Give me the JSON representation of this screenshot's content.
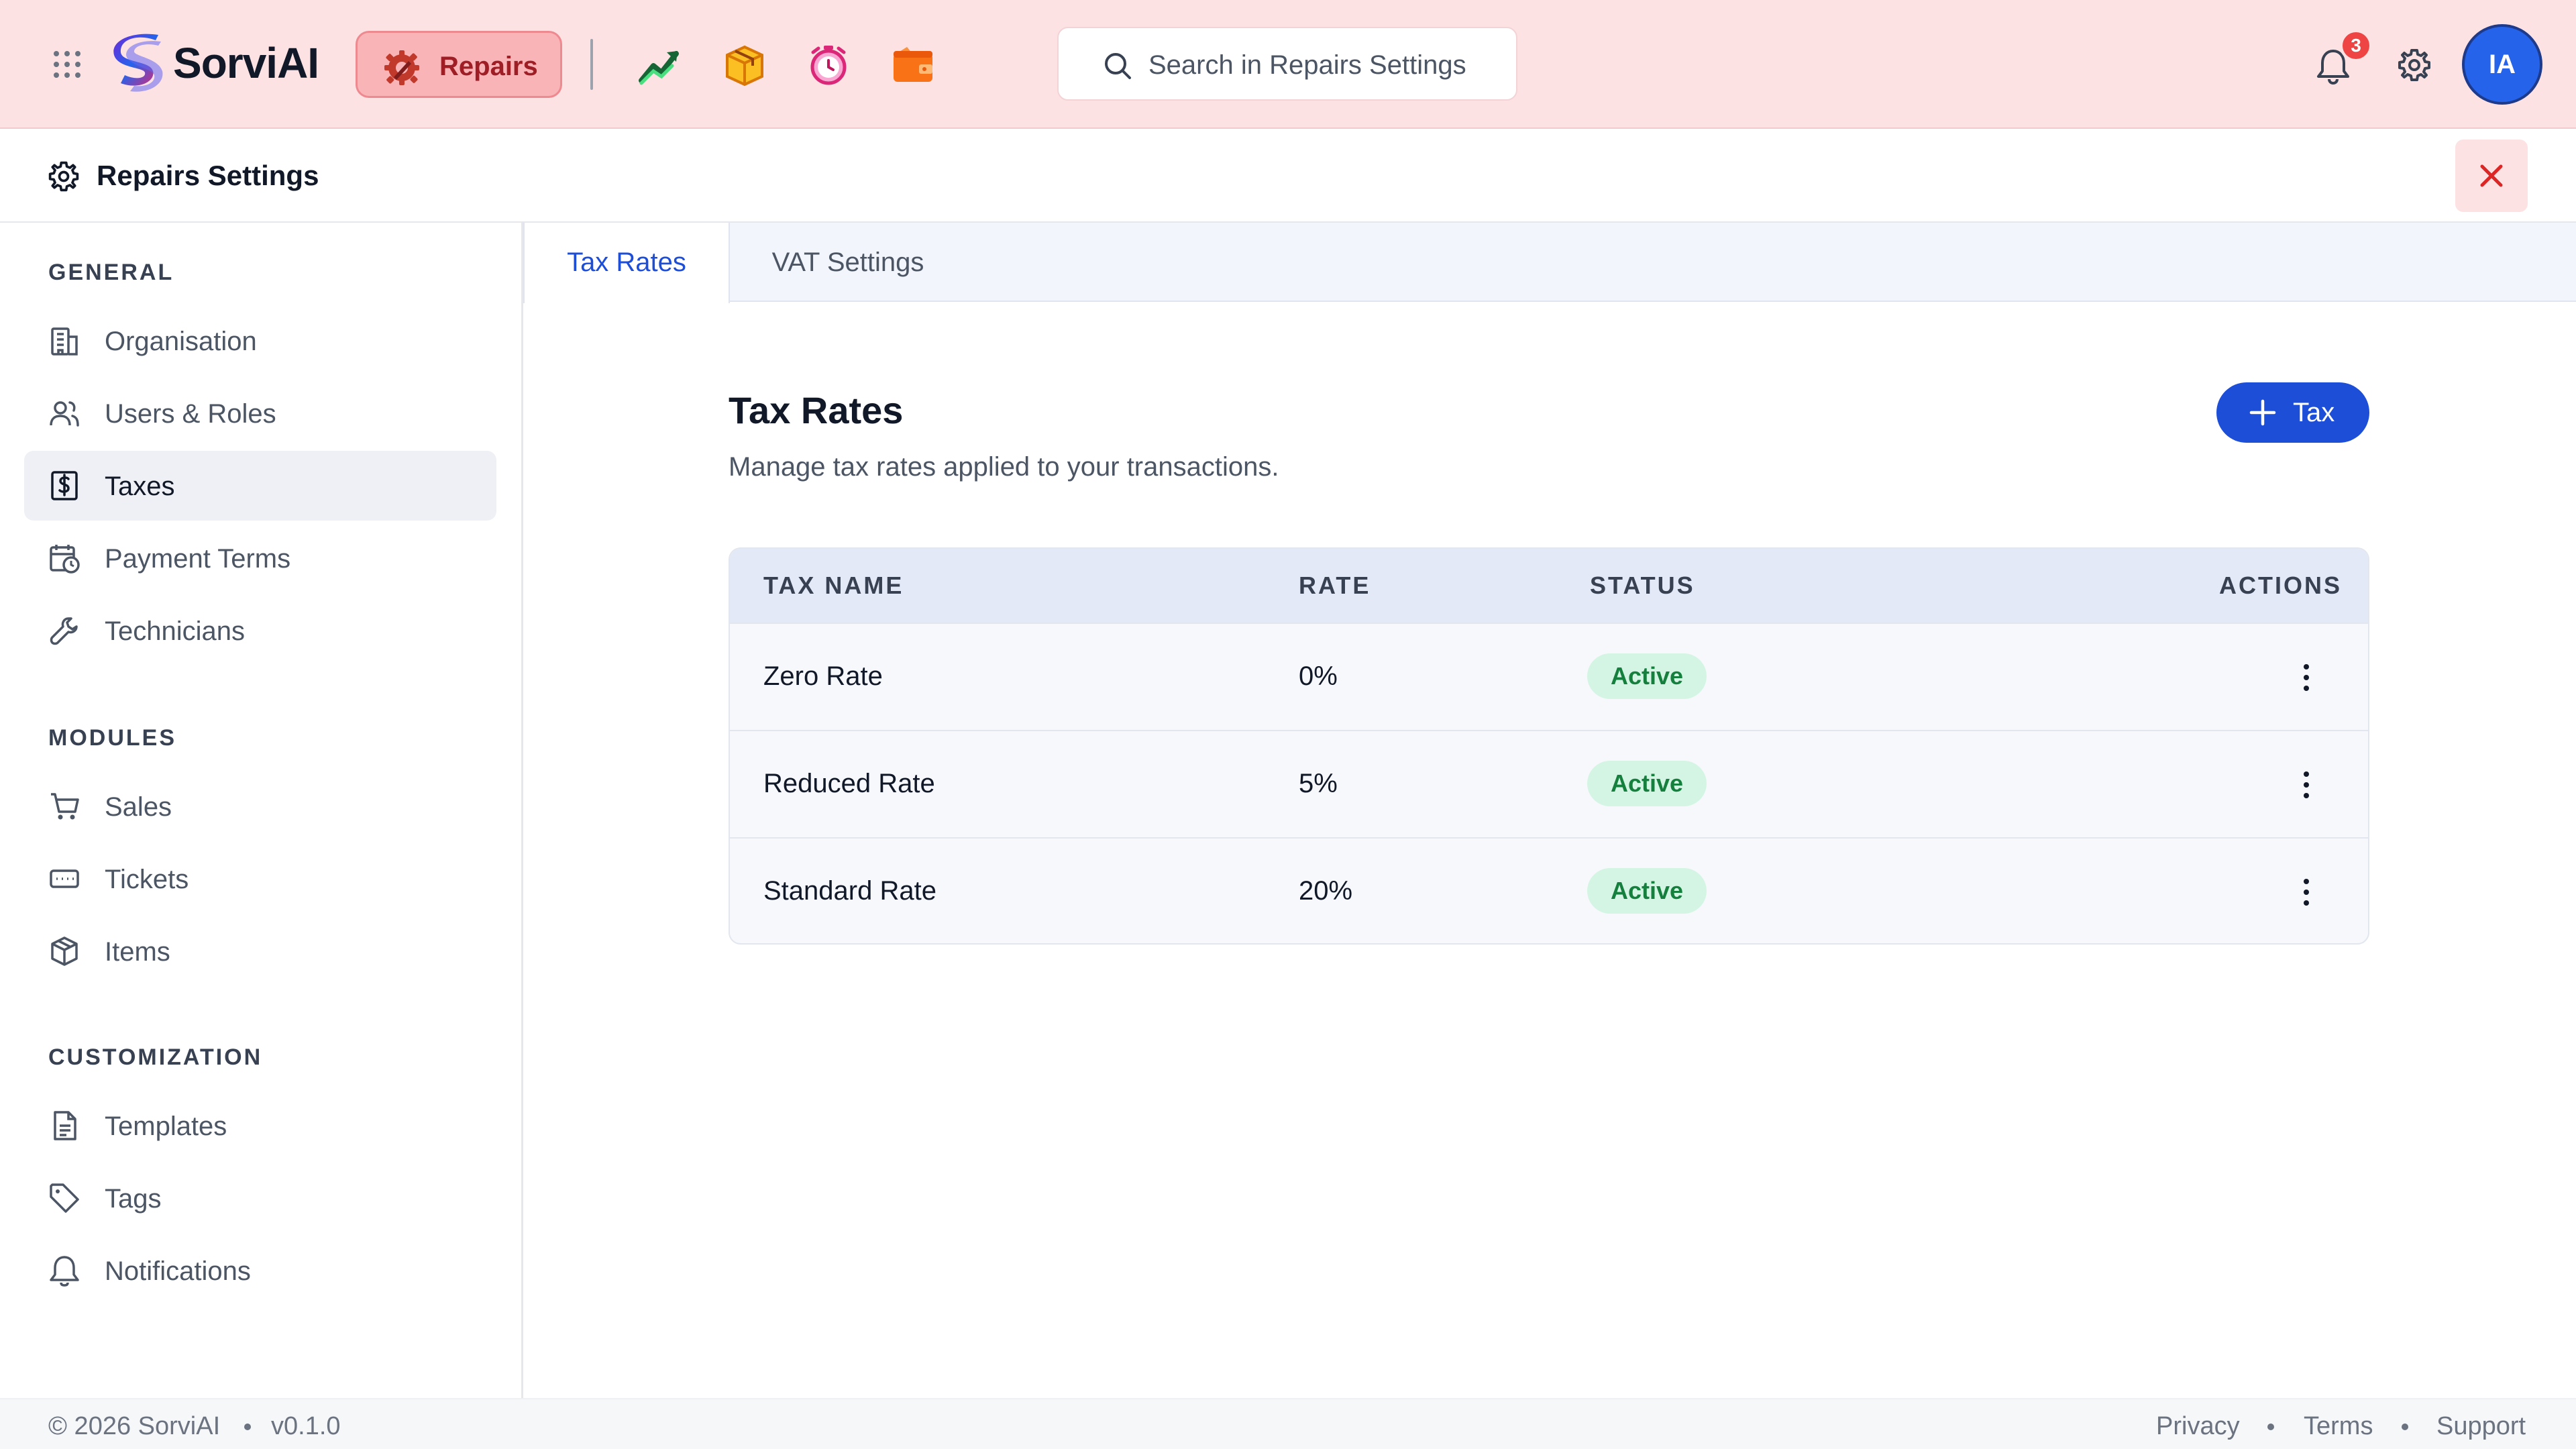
{
  "app": {
    "brand": "SorviAI",
    "active_module": "Repairs",
    "search_placeholder": "Search in Repairs Settings",
    "notification_count": "3",
    "user_initials": "IA",
    "accent_color": "#1d4ed8"
  },
  "header": {
    "title": "Repairs Settings"
  },
  "sidebar": {
    "sections": [
      {
        "title": "GENERAL",
        "items": [
          {
            "label": "Organisation",
            "icon": "building-icon"
          },
          {
            "label": "Users & Roles",
            "icon": "users-icon"
          },
          {
            "label": "Taxes",
            "icon": "dollar-receipt-icon",
            "active": true
          },
          {
            "label": "Payment Terms",
            "icon": "calendar-clock-icon"
          },
          {
            "label": "Technicians",
            "icon": "wrench-icon"
          }
        ]
      },
      {
        "title": "MODULES",
        "items": [
          {
            "label": "Sales",
            "icon": "cart-icon"
          },
          {
            "label": "Tickets",
            "icon": "ticket-icon"
          },
          {
            "label": "Items",
            "icon": "box-icon"
          }
        ]
      },
      {
        "title": "CUSTOMIZATION",
        "items": [
          {
            "label": "Templates",
            "icon": "document-icon"
          },
          {
            "label": "Tags",
            "icon": "tag-icon"
          },
          {
            "label": "Notifications",
            "icon": "bell-icon"
          }
        ]
      }
    ]
  },
  "tabs": [
    {
      "label": "Tax Rates",
      "active": true
    },
    {
      "label": "VAT Settings",
      "active": false
    }
  ],
  "content": {
    "title": "Tax Rates",
    "subtitle": "Manage tax rates applied to your transactions.",
    "add_button_label": "Tax"
  },
  "table": {
    "columns": [
      "TAX NAME",
      "RATE",
      "STATUS",
      "ACTIONS"
    ],
    "rows": [
      {
        "name": "Zero Rate",
        "rate": "0%",
        "status": "Active"
      },
      {
        "name": "Reduced Rate",
        "rate": "5%",
        "status": "Active"
      },
      {
        "name": "Standard Rate",
        "rate": "20%",
        "status": "Active"
      }
    ]
  },
  "footer": {
    "copyright": "© 2026 SorviAI",
    "version": "v0.1.0",
    "links": [
      "Privacy",
      "Terms",
      "Support"
    ]
  }
}
